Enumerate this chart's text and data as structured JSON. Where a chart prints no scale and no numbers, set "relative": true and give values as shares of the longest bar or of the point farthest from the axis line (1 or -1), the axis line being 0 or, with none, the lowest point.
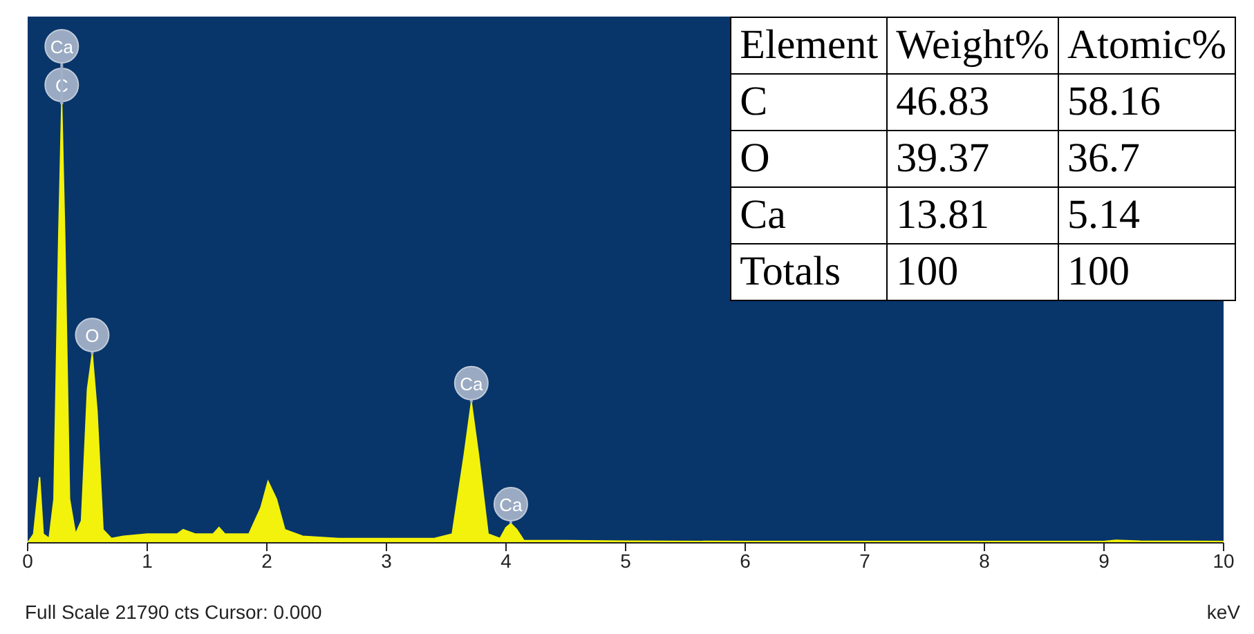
{
  "chart_data": [
    {
      "type": "area",
      "relative": true,
      "xlabel": "keV",
      "xlim": [
        0,
        10
      ],
      "xticks": [
        0,
        1,
        2,
        3,
        4,
        5,
        6,
        7,
        8,
        9,
        10
      ],
      "color": "#f2f20c",
      "grid": false,
      "legend": false,
      "x": [
        0,
        0.05,
        0.1,
        0.13,
        0.18,
        0.22,
        0.26,
        0.285,
        0.31,
        0.35,
        0.4,
        0.45,
        0.5,
        0.54,
        0.58,
        0.63,
        0.7,
        0.8,
        1.0,
        1.25,
        1.3,
        1.4,
        1.55,
        1.6,
        1.65,
        1.85,
        1.95,
        2.01,
        2.08,
        2.15,
        2.3,
        2.6,
        3.0,
        3.4,
        3.55,
        3.65,
        3.71,
        3.77,
        3.85,
        3.95,
        4.0,
        4.04,
        4.09,
        4.15,
        4.5,
        5,
        6,
        7,
        8,
        9,
        9.1,
        9.3,
        10
      ],
      "values": [
        0,
        0.02,
        0.15,
        0.02,
        0.01,
        0.1,
        0.7,
        1,
        0.7,
        0.1,
        0.02,
        0.05,
        0.35,
        0.43,
        0.3,
        0.03,
        0.01,
        0.015,
        0.02,
        0.02,
        0.03,
        0.02,
        0.02,
        0.035,
        0.02,
        0.02,
        0.08,
        0.14,
        0.1,
        0.03,
        0.015,
        0.01,
        0.01,
        0.01,
        0.02,
        0.2,
        0.32,
        0.2,
        0.02,
        0.01,
        0.035,
        0.044,
        0.03,
        0.005,
        0.005,
        0.004,
        0.003,
        0.003,
        0.003,
        0.003,
        0.006,
        0.004,
        0.003
      ],
      "annotations": [
        {
          "text": "C",
          "x": 0.285,
          "y": 1
        },
        {
          "text": "Ca",
          "x": 0.285,
          "y": 1
        },
        {
          "text": "O",
          "x": 0.54,
          "y": 0.43
        },
        {
          "text": "Ca",
          "x": 3.71,
          "y": 0.32
        },
        {
          "text": "Ca",
          "x": 4.04,
          "y": 0.044
        },
        "Full Scale 21790 cts Cursor: 0.000"
      ]
    },
    {
      "type": "other",
      "xlabel": "Element",
      "data_labels": true,
      "categories": [
        "C",
        "O",
        "Ca",
        "Totals"
      ],
      "series": [
        {
          "name": "Weight%",
          "values": [
            46.83,
            39.37,
            13.81,
            100
          ]
        },
        {
          "name": "Atomic%",
          "values": [
            58.16,
            36.7,
            5.14,
            100
          ]
        }
      ]
    }
  ]
}
